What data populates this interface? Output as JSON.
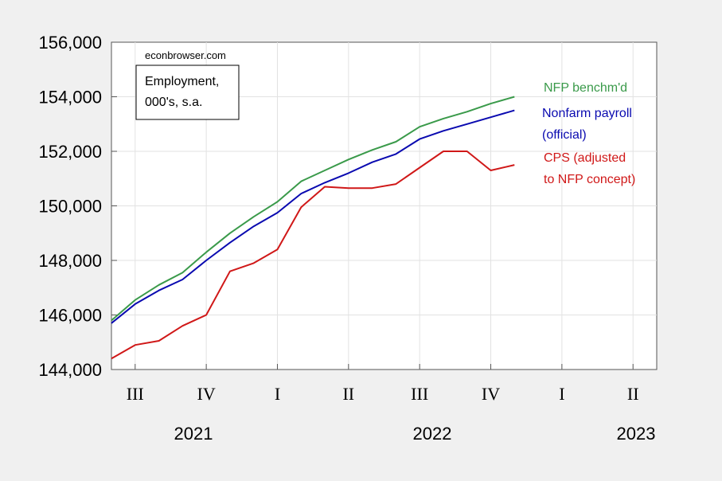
{
  "chart_data": {
    "type": "line",
    "title": "",
    "xlabel": "",
    "ylabel": "",
    "ylim": [
      144000,
      156000
    ],
    "yticks": [
      144000,
      146000,
      148000,
      150000,
      152000,
      154000,
      156000
    ],
    "ytick_labels": [
      "144,000",
      "146,000",
      "148,000",
      "150,000",
      "152,000",
      "154,000",
      "156,000"
    ],
    "x_range": [
      "2021-07",
      "2023-06"
    ],
    "quarter_ticks": [
      "III",
      "IV",
      "I",
      "II",
      "III",
      "IV",
      "I",
      "II"
    ],
    "year_labels": [
      "2021",
      "2022",
      "2023"
    ],
    "grid": true,
    "x": [
      "2021-07",
      "2021-08",
      "2021-09",
      "2021-10",
      "2021-11",
      "2021-12",
      "2022-01",
      "2022-02",
      "2022-03",
      "2022-04",
      "2022-05",
      "2022-06",
      "2022-07",
      "2022-08",
      "2022-09",
      "2022-10",
      "2022-11",
      "2022-12"
    ],
    "series": [
      {
        "name": "NFP benchm'd",
        "color": "#3a9a4a",
        "label_lines": [
          "NFP benchm'd"
        ],
        "values": [
          145800,
          146550,
          147100,
          147550,
          148300,
          149000,
          149600,
          150150,
          150900,
          151300,
          151700,
          152050,
          152350,
          152900,
          153200,
          153450,
          153750,
          154000
        ]
      },
      {
        "name": "Nonfarm payroll (official)",
        "color": "#0a0ab0",
        "label_lines": [
          "Nonfarm payroll",
          "(official)"
        ],
        "values": [
          145700,
          146400,
          146900,
          147300,
          148000,
          148650,
          149250,
          149750,
          150450,
          150850,
          151200,
          151600,
          151900,
          152450,
          152750,
          153000,
          153250,
          153500
        ]
      },
      {
        "name": "CPS (adjusted to NFP concept)",
        "color": "#d01818",
        "label_lines": [
          "CPS (adjusted",
          "to NFP concept)"
        ],
        "values": [
          144400,
          144900,
          145050,
          145600,
          146000,
          147600,
          147900,
          148400,
          149950,
          150700,
          150650,
          150650,
          150800,
          151400,
          152000,
          152000,
          151300,
          151500
        ]
      }
    ],
    "annotation_source": "econbrowser.com",
    "annotation_box_lines": [
      "Employment,",
      "000's, s.a."
    ]
  }
}
